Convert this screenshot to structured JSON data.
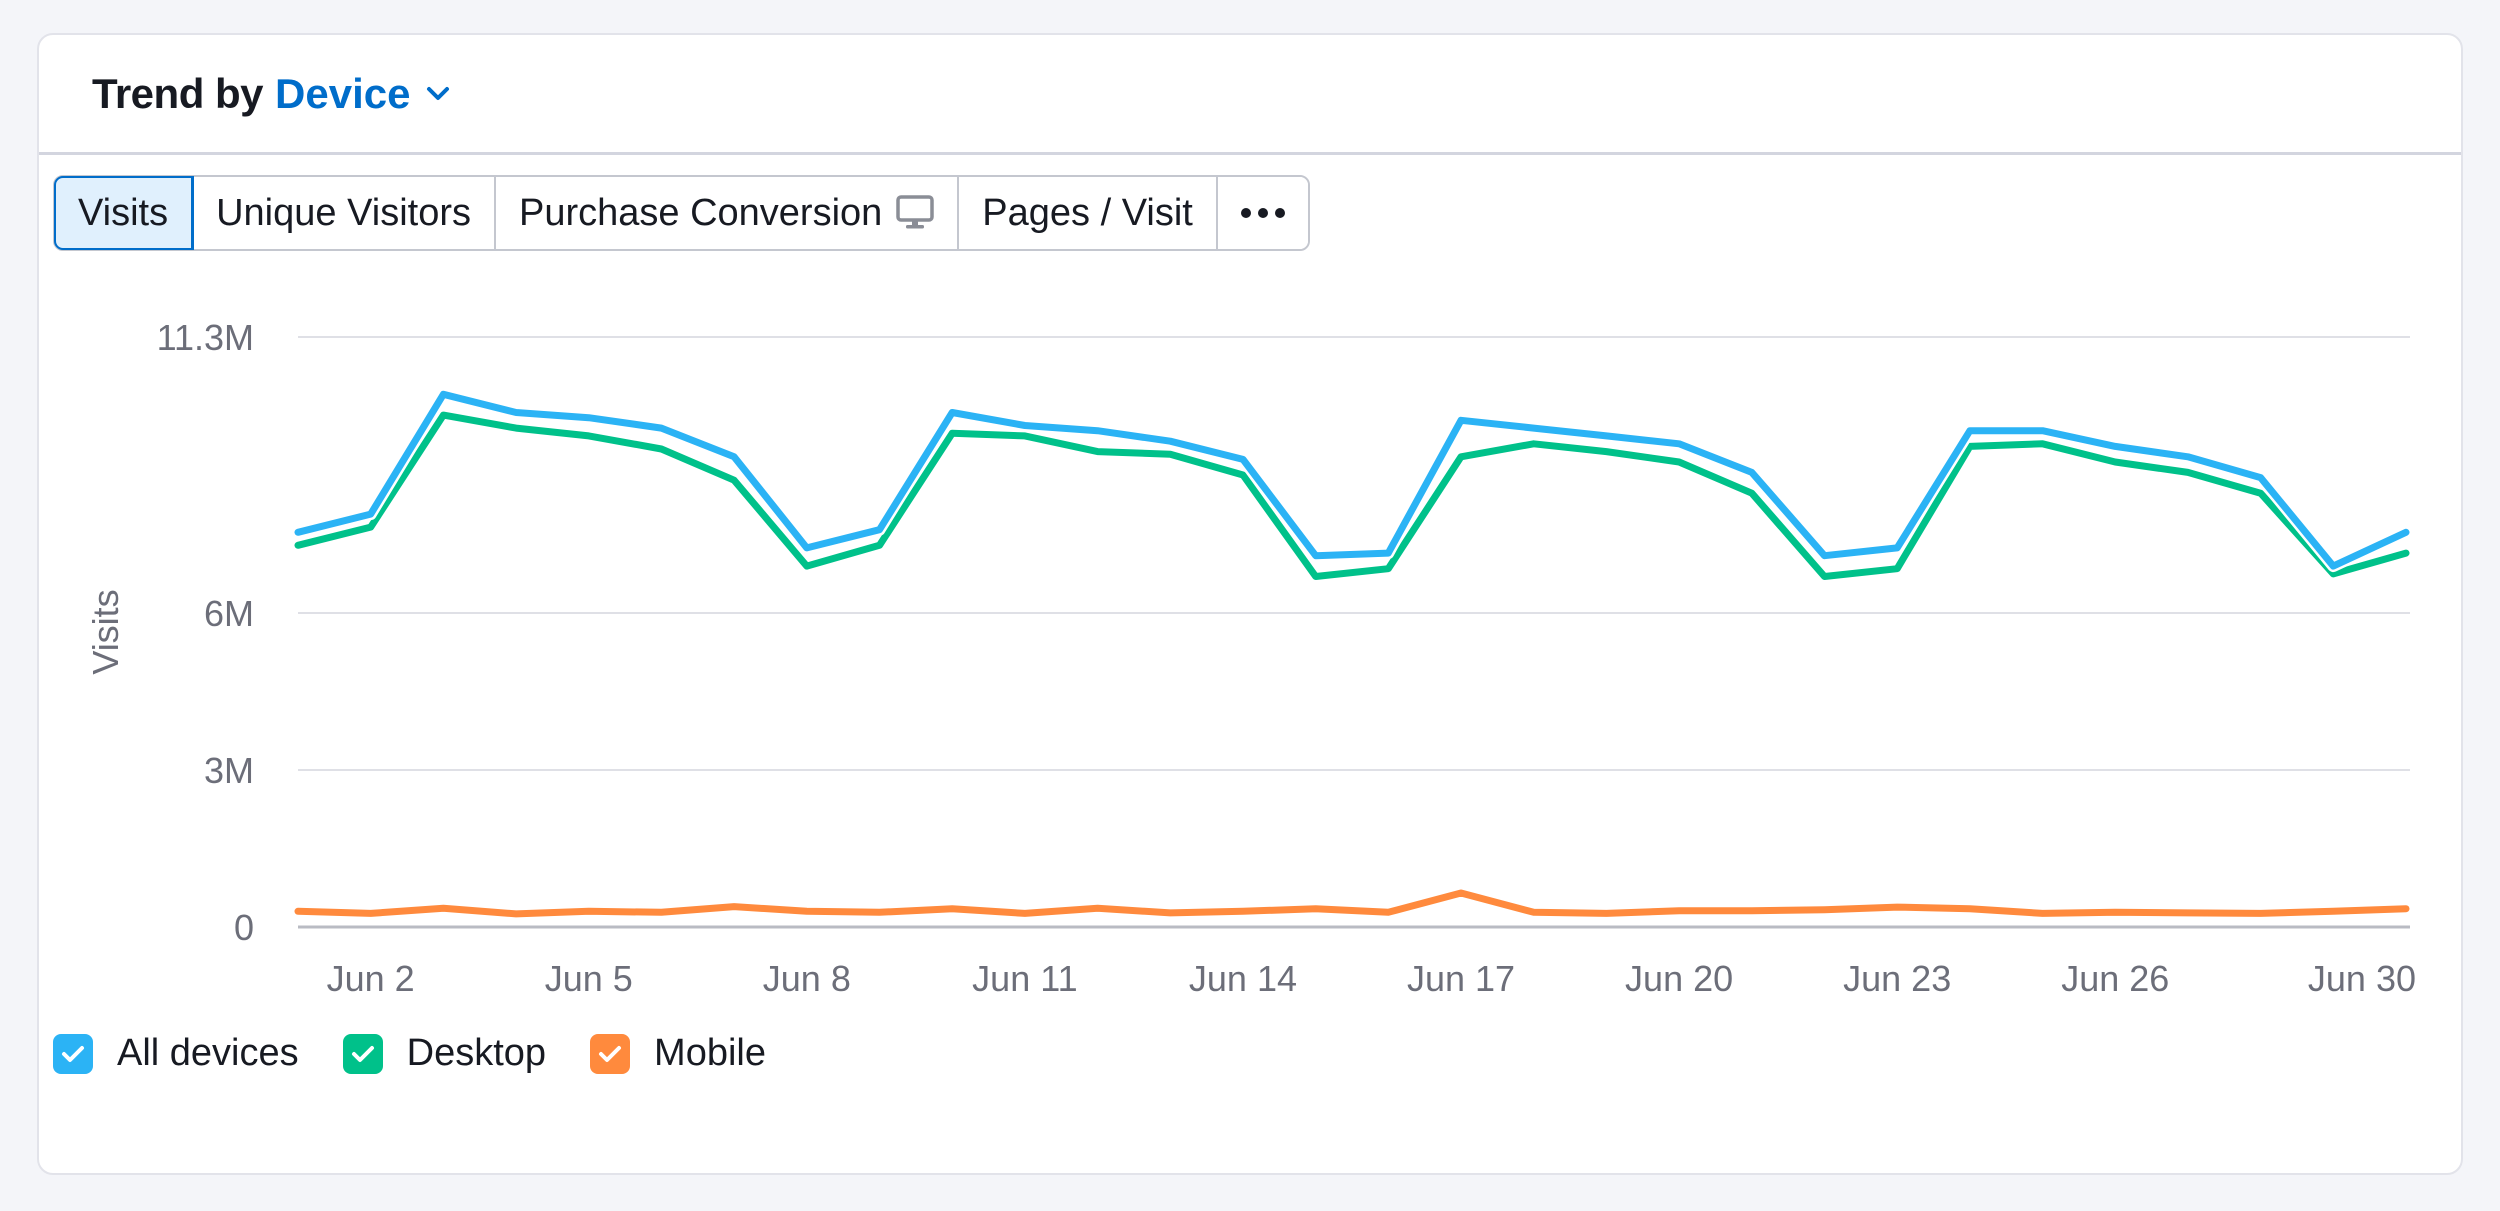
{
  "header": {
    "title": "Trend by",
    "dimension": "Device",
    "chevron_icon": "chevron-down-icon"
  },
  "tabs": [
    {
      "label": "Visits",
      "active": true
    },
    {
      "label": "Unique Visitors",
      "active": false
    },
    {
      "label": "Purchase Conversion",
      "active": false,
      "icon": "monitor-icon"
    },
    {
      "label": "Pages / Visit",
      "active": false
    },
    {
      "label": "•••",
      "active": false,
      "icon": "more-icon"
    }
  ],
  "colors": {
    "accent": "#006dca",
    "all_devices": "#2bb3f5",
    "desktop": "#00c18a",
    "mobile": "#ff8a3d",
    "grid": "#dfe0e6",
    "axis_text": "#6c6e79"
  },
  "chart_data": {
    "type": "line",
    "ylabel": "Visits",
    "xlabel": "",
    "yticks": [
      {
        "label": "0",
        "value": 0
      },
      {
        "label": "3M",
        "value": 3000000
      },
      {
        "label": "6M",
        "value": 6000000
      },
      {
        "label": "11.3M",
        "value": 11300000
      }
    ],
    "ylim": [
      0,
      11300000
    ],
    "x": [
      "Jun 1",
      "Jun 2",
      "Jun 3",
      "Jun 4",
      "Jun 5",
      "Jun 6",
      "Jun 7",
      "Jun 8",
      "Jun 9",
      "Jun 10",
      "Jun 11",
      "Jun 12",
      "Jun 13",
      "Jun 14",
      "Jun 15",
      "Jun 16",
      "Jun 17",
      "Jun 18",
      "Jun 19",
      "Jun 20",
      "Jun 21",
      "Jun 22",
      "Jun 23",
      "Jun 24",
      "Jun 25",
      "Jun 26",
      "Jun 27",
      "Jun 28",
      "Jun 29",
      "Jun 30"
    ],
    "xtick_labels": [
      "Jun 2",
      "Jun 5",
      "Jun 8",
      "Jun 11",
      "Jun 14",
      "Jun 17",
      "Jun 20",
      "Jun 23",
      "Jun 26",
      "Jun 30"
    ],
    "series": [
      {
        "name": "All devices",
        "color": "#2bb3f5",
        "values": [
          7550000,
          7900000,
          10200000,
          9850000,
          9750000,
          9550000,
          9000000,
          7250000,
          7600000,
          9850000,
          9600000,
          9500000,
          9300000,
          8950000,
          7100000,
          7150000,
          9700000,
          9550000,
          9400000,
          9250000,
          8700000,
          7100000,
          7250000,
          9500000,
          9500000,
          9200000,
          9000000,
          8600000,
          6900000,
          7550000
        ]
      },
      {
        "name": "Desktop",
        "color": "#00c18a",
        "values": [
          7300000,
          7650000,
          9800000,
          9550000,
          9400000,
          9150000,
          8550000,
          6900000,
          7300000,
          9450000,
          9400000,
          9100000,
          9050000,
          8650000,
          6700000,
          6850000,
          9000000,
          9250000,
          9100000,
          8900000,
          8300000,
          6700000,
          6850000,
          9200000,
          9250000,
          8900000,
          8700000,
          8300000,
          6750000,
          7150000
        ]
      },
      {
        "name": "Mobile",
        "color": "#ff8a3d",
        "values": [
          300000,
          260000,
          360000,
          250000,
          300000,
          280000,
          390000,
          300000,
          280000,
          350000,
          260000,
          360000,
          270000,
          300000,
          350000,
          280000,
          650000,
          280000,
          260000,
          310000,
          310000,
          330000,
          380000,
          350000,
          260000,
          280000,
          270000,
          260000,
          300000,
          350000
        ]
      }
    ],
    "legend": [
      {
        "label": "All devices",
        "checked": true,
        "color": "#2bb3f5"
      },
      {
        "label": "Desktop",
        "checked": true,
        "color": "#00c18a"
      },
      {
        "label": "Mobile",
        "checked": true,
        "color": "#ff8a3d"
      }
    ]
  }
}
